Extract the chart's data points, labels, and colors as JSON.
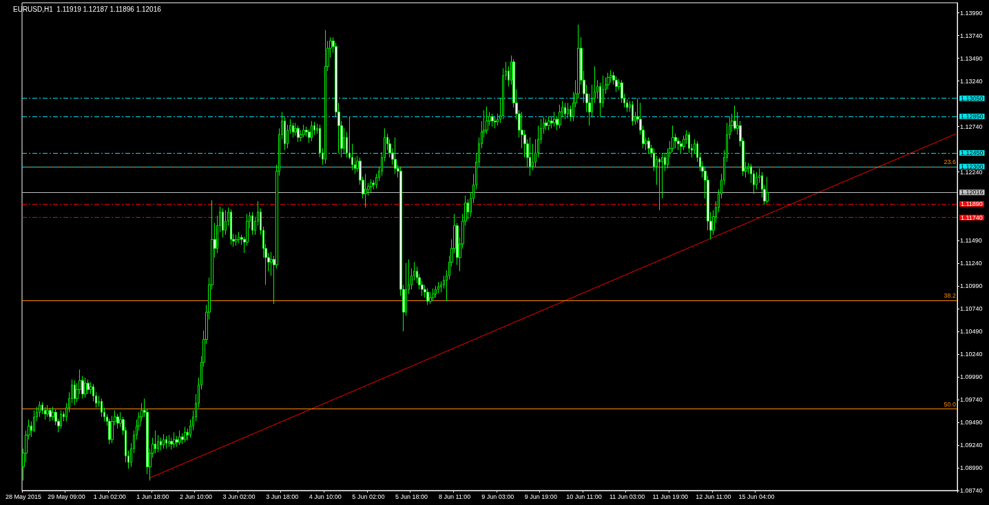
{
  "chart_data": {
    "type": "candlestick",
    "title": "EURUSD,H1  1.11919 1.12187 1.11896 1.12016",
    "color": "#00ff00",
    "categories": [
      "28 May 2015",
      null,
      null,
      null,
      null,
      null,
      null,
      null,
      null,
      null,
      null,
      null,
      null,
      null,
      null,
      null,
      "29 May 09:00",
      null,
      null,
      null,
      null,
      null,
      null,
      null,
      null,
      null,
      null,
      null,
      null,
      null,
      null,
      null,
      "1 Jun 02:00",
      null,
      null,
      null,
      null,
      null,
      null,
      null,
      null,
      null,
      null,
      null,
      null,
      null,
      null,
      null,
      "1 Jun 18:00",
      null,
      null,
      null,
      null,
      null,
      null,
      null,
      null,
      null,
      null,
      null,
      null,
      null,
      null,
      null,
      "2 Jun 10:00",
      null,
      null,
      null,
      null,
      null,
      null,
      null,
      null,
      null,
      null,
      null,
      null,
      null,
      null,
      null,
      "3 Jun 02:00",
      null,
      null,
      null,
      null,
      null,
      null,
      null,
      null,
      null,
      null,
      null,
      null,
      null,
      null,
      null,
      "3 Jun 18:00",
      null,
      null,
      null,
      null,
      null,
      null,
      null,
      null,
      null,
      null,
      null,
      null,
      null,
      null,
      null,
      "4 Jun 10:00",
      null,
      null,
      null,
      null,
      null,
      null,
      null,
      null,
      null,
      null,
      null,
      null,
      null,
      null,
      null,
      "5 Jun 02:00",
      null,
      null,
      null,
      null,
      null,
      null,
      null,
      null,
      null,
      null,
      null,
      null,
      null,
      null,
      null,
      "5 Jun 18:00",
      null,
      null,
      null,
      null,
      null,
      null,
      null,
      null,
      null,
      null,
      null,
      null,
      null,
      null,
      null,
      "8 Jun 11:00",
      null,
      null,
      null,
      null,
      null,
      null,
      null,
      null,
      null,
      null,
      null,
      null,
      null,
      null,
      null,
      "9 Jun 03:00",
      null,
      null,
      null,
      null,
      null,
      null,
      null,
      null,
      null,
      null,
      null,
      null,
      null,
      null,
      null,
      "9 Jun 19:00",
      null,
      null,
      null,
      null,
      null,
      null,
      null,
      null,
      null,
      null,
      null,
      null,
      null,
      null,
      null,
      "10 Jun 11:00",
      null,
      null,
      null,
      null,
      null,
      null,
      null,
      null,
      null,
      null,
      null,
      null,
      null,
      null,
      null,
      "11 Jun 03:00",
      null,
      null,
      null,
      null,
      null,
      null,
      null,
      null,
      null,
      null,
      null,
      null,
      null,
      null,
      null,
      "11 Jun 19:00",
      null,
      null,
      null,
      null,
      null,
      null,
      null,
      null,
      null,
      null,
      null,
      null,
      null,
      null,
      null,
      "12 Jun 11:00",
      null,
      null,
      null,
      null,
      null,
      null,
      null,
      null,
      null,
      null,
      null,
      null,
      null,
      null,
      null,
      "15 Jun 04:00",
      null,
      null,
      null,
      null,
      null,
      null,
      null,
      null,
      null,
      null,
      null,
      null,
      null,
      null,
      null,
      null,
      null,
      null,
      null,
      null,
      null,
      null,
      null,
      null,
      null,
      null,
      null,
      null,
      null,
      null,
      null,
      null,
      null,
      null,
      null,
      null,
      null,
      null,
      null,
      null,
      null,
      null,
      null,
      null,
      null,
      null,
      null,
      null,
      null,
      null,
      null,
      null,
      null,
      null,
      null,
      null,
      null,
      null,
      null,
      null,
      null,
      null,
      null,
      null,
      null,
      null,
      null,
      null,
      null,
      null,
      null,
      null,
      null,
      null
    ],
    "ohlc": [
      [
        1.09,
        1.092,
        1.0885,
        1.0915
      ],
      [
        1.0915,
        1.094,
        1.0905,
        1.0935
      ],
      [
        1.0935,
        1.0952,
        1.093,
        1.0945
      ],
      [
        1.0945,
        1.095,
        1.0933,
        1.094
      ],
      [
        1.094,
        1.0962,
        1.0938,
        1.0955
      ],
      [
        1.0955,
        1.0966,
        1.095,
        1.096
      ],
      [
        1.096,
        1.0972,
        1.0955,
        1.0968
      ],
      [
        1.0968,
        1.0971,
        1.0958,
        1.0962
      ],
      [
        1.0962,
        1.0966,
        1.0952,
        1.0958
      ],
      [
        1.0958,
        1.0968,
        1.0955,
        1.0962
      ],
      [
        1.0962,
        1.0965,
        1.095,
        1.0955
      ],
      [
        1.0955,
        1.0966,
        1.0951,
        1.096
      ],
      [
        1.096,
        1.0963,
        1.0946,
        1.095
      ],
      [
        1.095,
        1.0953,
        1.0938,
        1.0945
      ],
      [
        1.0945,
        1.0962,
        1.0942,
        1.0958
      ],
      [
        1.0958,
        1.0961,
        1.095,
        1.0955
      ],
      [
        1.0955,
        1.097,
        1.095,
        1.0965
      ],
      [
        1.0965,
        1.0982,
        1.096,
        1.0975
      ],
      [
        1.0975,
        1.0996,
        1.097,
        1.099
      ],
      [
        1.099,
        1.0995,
        1.0968,
        1.0975
      ],
      [
        1.0975,
        1.0992,
        1.0971,
        1.0985
      ],
      [
        1.0985,
        1.1007,
        1.098,
        1.0995
      ],
      [
        1.0995,
        1.1,
        1.0975,
        1.098
      ],
      [
        1.098,
        1.0998,
        1.0976,
        1.0992
      ],
      [
        1.0992,
        1.0996,
        1.098,
        1.0985
      ],
      [
        1.0985,
        1.0993,
        1.098,
        1.0988
      ],
      [
        1.0988,
        1.0991,
        1.0972,
        1.0978
      ],
      [
        1.0978,
        1.0982,
        1.0965,
        1.097
      ],
      [
        1.097,
        1.0978,
        1.0966,
        1.0972
      ],
      [
        1.0972,
        1.0975,
        1.0955,
        1.096
      ],
      [
        1.096,
        1.0965,
        1.095,
        1.0955
      ],
      [
        1.0955,
        1.0958,
        1.0945,
        1.095
      ],
      [
        1.095,
        1.0953,
        1.0925,
        1.093
      ],
      [
        1.093,
        1.0956,
        1.0926,
        1.095
      ],
      [
        1.095,
        1.0962,
        1.0946,
        1.0955
      ],
      [
        1.0955,
        1.0958,
        1.0942,
        1.0948
      ],
      [
        1.0948,
        1.096,
        1.0944,
        1.0952
      ],
      [
        1.0952,
        1.0955,
        1.0935,
        1.094
      ],
      [
        1.094,
        1.0944,
        1.0905,
        1.0912
      ],
      [
        1.0912,
        1.0918,
        1.0898,
        1.0905
      ],
      [
        1.0905,
        1.0926,
        1.09,
        1.092
      ],
      [
        1.092,
        1.094,
        1.0915,
        1.0935
      ],
      [
        1.0935,
        1.0952,
        1.093,
        1.0945
      ],
      [
        1.0945,
        1.096,
        1.094,
        1.0955
      ],
      [
        1.0955,
        1.097,
        1.095,
        1.0962
      ],
      [
        1.0962,
        1.0975,
        1.0955,
        1.096
      ],
      [
        1.096,
        1.0964,
        1.0892,
        1.09
      ],
      [
        1.09,
        1.092,
        1.0885,
        1.0915
      ],
      [
        1.0915,
        1.0932,
        1.091,
        1.0925
      ],
      [
        1.0925,
        1.094,
        1.0915,
        1.092
      ],
      [
        1.092,
        1.0935,
        1.0916,
        1.0928
      ],
      [
        1.0928,
        1.0932,
        1.0918,
        1.0924
      ],
      [
        1.0924,
        1.0936,
        1.092,
        1.093
      ],
      [
        1.093,
        1.0934,
        1.092,
        1.0926
      ],
      [
        1.0926,
        1.0935,
        1.0922,
        1.0928
      ],
      [
        1.0928,
        1.0932,
        1.0919,
        1.0925
      ],
      [
        1.0925,
        1.0938,
        1.0921,
        1.093
      ],
      [
        1.093,
        1.0934,
        1.0922,
        1.0927
      ],
      [
        1.0927,
        1.094,
        1.0924,
        1.0933
      ],
      [
        1.0933,
        1.0937,
        1.0925,
        1.093
      ],
      [
        1.093,
        1.0944,
        1.0927,
        1.0938
      ],
      [
        1.0938,
        1.0942,
        1.0929,
        1.0935
      ],
      [
        1.0935,
        1.0952,
        1.0932,
        1.0945
      ],
      [
        1.0945,
        1.0962,
        1.094,
        1.0955
      ],
      [
        1.0955,
        1.098,
        1.095,
        1.097
      ],
      [
        1.097,
        1.0998,
        1.0965,
        1.099
      ],
      [
        1.099,
        1.1022,
        1.0985,
        1.1015
      ],
      [
        1.1015,
        1.105,
        1.101,
        1.104
      ],
      [
        1.104,
        1.1078,
        1.1035,
        1.107
      ],
      [
        1.107,
        1.1108,
        1.1062,
        1.11
      ],
      [
        1.11,
        1.1193,
        1.1095,
        1.115
      ],
      [
        1.115,
        1.1168,
        1.113,
        1.114
      ],
      [
        1.114,
        1.1176,
        1.1135,
        1.1165
      ],
      [
        1.1165,
        1.1186,
        1.1158,
        1.118
      ],
      [
        1.118,
        1.1184,
        1.1152,
        1.116
      ],
      [
        1.116,
        1.1182,
        1.1155,
        1.117
      ],
      [
        1.117,
        1.1185,
        1.1165,
        1.118
      ],
      [
        1.118,
        1.1183,
        1.1144,
        1.115
      ],
      [
        1.115,
        1.1156,
        1.1142,
        1.1148
      ],
      [
        1.1148,
        1.1155,
        1.1143,
        1.115
      ],
      [
        1.115,
        1.1158,
        1.1146,
        1.1152
      ],
      [
        1.1152,
        1.1155,
        1.1144,
        1.115
      ],
      [
        1.115,
        1.1153,
        1.1135,
        1.1147
      ],
      [
        1.1147,
        1.1178,
        1.1143,
        1.117
      ],
      [
        1.117,
        1.118,
        1.1162,
        1.1176
      ],
      [
        1.1176,
        1.118,
        1.1155,
        1.116
      ],
      [
        1.116,
        1.1175,
        1.1155,
        1.117
      ],
      [
        1.117,
        1.1192,
        1.1165,
        1.118
      ],
      [
        1.118,
        1.1184,
        1.1155,
        1.116
      ],
      [
        1.116,
        1.1164,
        1.113,
        1.114
      ],
      [
        1.114,
        1.1145,
        1.11,
        1.113
      ],
      [
        1.113,
        1.1135,
        1.1115,
        1.1125
      ],
      [
        1.1125,
        1.1136,
        1.111,
        1.1128
      ],
      [
        1.1128,
        1.1132,
        1.1079,
        1.1122
      ],
      [
        1.1122,
        1.1232,
        1.1118,
        1.1225
      ],
      [
        1.1225,
        1.1272,
        1.122,
        1.1265
      ],
      [
        1.1265,
        1.129,
        1.126,
        1.128
      ],
      [
        1.128,
        1.1284,
        1.1248,
        1.1255
      ],
      [
        1.1255,
        1.1276,
        1.125,
        1.127
      ],
      [
        1.127,
        1.1282,
        1.1266,
        1.1275
      ],
      [
        1.1275,
        1.1278,
        1.1262,
        1.1268
      ],
      [
        1.1268,
        1.1278,
        1.1264,
        1.1272
      ],
      [
        1.1272,
        1.1275,
        1.1257,
        1.1262
      ],
      [
        1.1262,
        1.127,
        1.1258,
        1.1265
      ],
      [
        1.1265,
        1.1276,
        1.1262,
        1.127
      ],
      [
        1.127,
        1.1274,
        1.1263,
        1.1268
      ],
      [
        1.1268,
        1.1271,
        1.1256,
        1.1262
      ],
      [
        1.1262,
        1.128,
        1.1258,
        1.1275
      ],
      [
        1.1275,
        1.1279,
        1.1265,
        1.127
      ],
      [
        1.127,
        1.1277,
        1.1266,
        1.1272
      ],
      [
        1.1272,
        1.1276,
        1.124,
        1.1245
      ],
      [
        1.1245,
        1.125,
        1.1232,
        1.1238
      ],
      [
        1.1238,
        1.138,
        1.1233,
        1.134
      ],
      [
        1.134,
        1.1368,
        1.1335,
        1.136
      ],
      [
        1.136,
        1.1372,
        1.135,
        1.1368
      ],
      [
        1.1368,
        1.1372,
        1.1355,
        1.1362
      ],
      [
        1.1362,
        1.1366,
        1.1285,
        1.129
      ],
      [
        1.129,
        1.13,
        1.1245,
        1.1275
      ],
      [
        1.1275,
        1.128,
        1.124,
        1.125
      ],
      [
        1.125,
        1.1272,
        1.1245,
        1.1262
      ],
      [
        1.1262,
        1.1268,
        1.124,
        1.1245
      ],
      [
        1.1245,
        1.1285,
        1.1238,
        1.124
      ],
      [
        1.124,
        1.1255,
        1.1226,
        1.1232
      ],
      [
        1.1232,
        1.124,
        1.1222,
        1.1228
      ],
      [
        1.1228,
        1.1242,
        1.1224,
        1.1236
      ],
      [
        1.1236,
        1.124,
        1.121,
        1.1215
      ],
      [
        1.1215,
        1.1219,
        1.1195,
        1.12
      ],
      [
        1.12,
        1.1222,
        1.1185,
        1.1205
      ],
      [
        1.1205,
        1.1212,
        1.1198,
        1.1208
      ],
      [
        1.1208,
        1.1216,
        1.1202,
        1.1212
      ],
      [
        1.1212,
        1.1215,
        1.1205,
        1.121
      ],
      [
        1.121,
        1.1222,
        1.1206,
        1.1218
      ],
      [
        1.1218,
        1.123,
        1.1214,
        1.1225
      ],
      [
        1.1225,
        1.1246,
        1.122,
        1.124
      ],
      [
        1.124,
        1.1272,
        1.1236,
        1.1262
      ],
      [
        1.1262,
        1.1266,
        1.1248,
        1.1255
      ],
      [
        1.1255,
        1.126,
        1.124,
        1.1245
      ],
      [
        1.1245,
        1.125,
        1.1232,
        1.1238
      ],
      [
        1.1238,
        1.1262,
        1.1222,
        1.1228
      ],
      [
        1.1228,
        1.1232,
        1.1218,
        1.1225
      ],
      [
        1.1225,
        1.123,
        1.1088,
        1.1095
      ],
      [
        1.1095,
        1.11,
        1.1049,
        1.107
      ],
      [
        1.107,
        1.1124,
        1.1066,
        1.1095
      ],
      [
        1.1095,
        1.1128,
        1.109,
        1.11
      ],
      [
        1.11,
        1.1118,
        1.1095,
        1.111
      ],
      [
        1.111,
        1.1125,
        1.1105,
        1.1115
      ],
      [
        1.1115,
        1.112,
        1.1102,
        1.1108
      ],
      [
        1.1108,
        1.1112,
        1.1095,
        1.11
      ],
      [
        1.11,
        1.1104,
        1.1088,
        1.1095
      ],
      [
        1.1095,
        1.11,
        1.1086,
        1.1092
      ],
      [
        1.1092,
        1.1096,
        1.1078,
        1.1082
      ],
      [
        1.1082,
        1.1092,
        1.1079,
        1.1086
      ],
      [
        1.1086,
        1.1096,
        1.1082,
        1.109
      ],
      [
        1.109,
        1.1099,
        1.1086,
        1.1095
      ],
      [
        1.1095,
        1.1103,
        1.1091,
        1.1098
      ],
      [
        1.1098,
        1.1104,
        1.1092,
        1.11
      ],
      [
        1.11,
        1.111,
        1.1096,
        1.1105
      ],
      [
        1.1105,
        1.1116,
        1.1082,
        1.111
      ],
      [
        1.111,
        1.1132,
        1.1106,
        1.1125
      ],
      [
        1.1125,
        1.115,
        1.112,
        1.114
      ],
      [
        1.114,
        1.1178,
        1.1135,
        1.1165
      ],
      [
        1.1165,
        1.1168,
        1.1122,
        1.113
      ],
      [
        1.113,
        1.1152,
        1.1115,
        1.1145
      ],
      [
        1.1145,
        1.1178,
        1.114,
        1.117
      ],
      [
        1.117,
        1.1198,
        1.1165,
        1.119
      ],
      [
        1.119,
        1.1194,
        1.1172,
        1.118
      ],
      [
        1.118,
        1.1202,
        1.1175,
        1.1195
      ],
      [
        1.1195,
        1.1222,
        1.119,
        1.121
      ],
      [
        1.121,
        1.1245,
        1.1205,
        1.1235
      ],
      [
        1.1235,
        1.1262,
        1.123,
        1.1255
      ],
      [
        1.1255,
        1.128,
        1.125,
        1.1268
      ],
      [
        1.1268,
        1.1292,
        1.1262,
        1.127
      ],
      [
        1.127,
        1.1296,
        1.1266,
        1.128
      ],
      [
        1.128,
        1.129,
        1.1275,
        1.1285
      ],
      [
        1.1285,
        1.1288,
        1.1274,
        1.128
      ],
      [
        1.128,
        1.1284,
        1.1272,
        1.1279
      ],
      [
        1.1279,
        1.1288,
        1.1275,
        1.1282
      ],
      [
        1.1282,
        1.1305,
        1.1278,
        1.1286
      ],
      [
        1.1286,
        1.1338,
        1.1282,
        1.133
      ],
      [
        1.133,
        1.1345,
        1.1325,
        1.1335
      ],
      [
        1.1335,
        1.134,
        1.1318,
        1.1325
      ],
      [
        1.1325,
        1.1352,
        1.132,
        1.1345
      ],
      [
        1.1345,
        1.1348,
        1.1295,
        1.13
      ],
      [
        1.13,
        1.1315,
        1.1282,
        1.1288
      ],
      [
        1.1288,
        1.1292,
        1.1262,
        1.127
      ],
      [
        1.127,
        1.129,
        1.125,
        1.1265
      ],
      [
        1.1265,
        1.127,
        1.124,
        1.1255
      ],
      [
        1.1255,
        1.126,
        1.123,
        1.124
      ],
      [
        1.124,
        1.1262,
        1.122,
        1.123
      ],
      [
        1.123,
        1.1255,
        1.1226,
        1.1235
      ],
      [
        1.1235,
        1.126,
        1.123,
        1.1245
      ],
      [
        1.1245,
        1.1275,
        1.124,
        1.126
      ],
      [
        1.126,
        1.1282,
        1.1255,
        1.1272
      ],
      [
        1.1272,
        1.1284,
        1.1266,
        1.1278
      ],
      [
        1.1278,
        1.1282,
        1.127,
        1.1275
      ],
      [
        1.1275,
        1.1285,
        1.127,
        1.128
      ],
      [
        1.128,
        1.1284,
        1.1272,
        1.1278
      ],
      [
        1.1278,
        1.129,
        1.1274,
        1.1282
      ],
      [
        1.1282,
        1.1285,
        1.127,
        1.1276
      ],
      [
        1.1276,
        1.1298,
        1.1272,
        1.129
      ],
      [
        1.129,
        1.1302,
        1.1285,
        1.1295
      ],
      [
        1.1295,
        1.13,
        1.1282,
        1.1288
      ],
      [
        1.1288,
        1.13,
        1.1283,
        1.1293
      ],
      [
        1.1293,
        1.1297,
        1.128,
        1.1285
      ],
      [
        1.1285,
        1.1312,
        1.128,
        1.13
      ],
      [
        1.13,
        1.1325,
        1.1295,
        1.131
      ],
      [
        1.131,
        1.1386,
        1.1305,
        1.136
      ],
      [
        1.136,
        1.1372,
        1.132,
        1.1325
      ],
      [
        1.1325,
        1.1335,
        1.13,
        1.131
      ],
      [
        1.131,
        1.132,
        1.129,
        1.13
      ],
      [
        1.13,
        1.131,
        1.1275,
        1.129
      ],
      [
        1.129,
        1.132,
        1.1285,
        1.1305
      ],
      [
        1.1305,
        1.134,
        1.13,
        1.1312
      ],
      [
        1.1312,
        1.1325,
        1.1305,
        1.1318
      ],
      [
        1.1318,
        1.1322,
        1.1285,
        1.13
      ],
      [
        1.13,
        1.133,
        1.1295,
        1.1315
      ],
      [
        1.1315,
        1.1328,
        1.131,
        1.132
      ],
      [
        1.132,
        1.1333,
        1.1315,
        1.1328
      ],
      [
        1.1328,
        1.1336,
        1.1322,
        1.133
      ],
      [
        1.133,
        1.1334,
        1.132,
        1.1325
      ],
      [
        1.1325,
        1.1329,
        1.1312,
        1.1318
      ],
      [
        1.1318,
        1.1326,
        1.1314,
        1.1322
      ],
      [
        1.1322,
        1.1325,
        1.13,
        1.1305
      ],
      [
        1.1305,
        1.131,
        1.1295,
        1.13
      ],
      [
        1.13,
        1.1304,
        1.129,
        1.1295
      ],
      [
        1.1295,
        1.1302,
        1.129,
        1.1298
      ],
      [
        1.1298,
        1.1302,
        1.1275,
        1.128
      ],
      [
        1.128,
        1.129,
        1.1276,
        1.1285
      ],
      [
        1.1285,
        1.1305,
        1.1278,
        1.1282
      ],
      [
        1.1282,
        1.13,
        1.1265,
        1.127
      ],
      [
        1.127,
        1.1275,
        1.125,
        1.1255
      ],
      [
        1.1255,
        1.1262,
        1.1248,
        1.1258
      ],
      [
        1.1258,
        1.1262,
        1.1244,
        1.125
      ],
      [
        1.125,
        1.1254,
        1.124,
        1.1245
      ],
      [
        1.1245,
        1.125,
        1.1225,
        1.123
      ],
      [
        1.123,
        1.1242,
        1.121,
        1.1238
      ],
      [
        1.1238,
        1.124,
        1.1182,
        1.1235
      ],
      [
        1.1235,
        1.1245,
        1.1195,
        1.124
      ],
      [
        1.124,
        1.1244,
        1.1225,
        1.1232
      ],
      [
        1.1232,
        1.125,
        1.1228,
        1.1245
      ],
      [
        1.1245,
        1.1258,
        1.124,
        1.125
      ],
      [
        1.125,
        1.1275,
        1.1246,
        1.1262
      ],
      [
        1.1262,
        1.1266,
        1.125,
        1.1258
      ],
      [
        1.1258,
        1.1262,
        1.1248,
        1.1255
      ],
      [
        1.1255,
        1.1258,
        1.1245,
        1.1252
      ],
      [
        1.1252,
        1.1264,
        1.1248,
        1.126
      ],
      [
        1.126,
        1.127,
        1.1255,
        1.1265
      ],
      [
        1.1265,
        1.1268,
        1.1245,
        1.125
      ],
      [
        1.125,
        1.1255,
        1.124,
        1.1248
      ],
      [
        1.1248,
        1.126,
        1.1244,
        1.1255
      ],
      [
        1.1255,
        1.1258,
        1.1235,
        1.124
      ],
      [
        1.124,
        1.1245,
        1.1225,
        1.123
      ],
      [
        1.123,
        1.1236,
        1.1218,
        1.1225
      ],
      [
        1.1225,
        1.123,
        1.1195,
        1.1215
      ],
      [
        1.1215,
        1.122,
        1.116,
        1.117
      ],
      [
        1.117,
        1.118,
        1.115,
        1.116
      ],
      [
        1.116,
        1.1182,
        1.1155,
        1.1175
      ],
      [
        1.1175,
        1.1192,
        1.1168,
        1.1185
      ],
      [
        1.1185,
        1.1205,
        1.118,
        1.12
      ],
      [
        1.12,
        1.1222,
        1.1195,
        1.1215
      ],
      [
        1.1215,
        1.1248,
        1.121,
        1.124
      ],
      [
        1.124,
        1.1278,
        1.1235,
        1.1265
      ],
      [
        1.1265,
        1.1285,
        1.126,
        1.1275
      ],
      [
        1.1275,
        1.1288,
        1.1268,
        1.128
      ],
      [
        1.128,
        1.1297,
        1.127,
        1.1272
      ],
      [
        1.1272,
        1.129,
        1.1265,
        1.1275
      ],
      [
        1.1275,
        1.128,
        1.1252,
        1.1258
      ],
      [
        1.1258,
        1.1262,
        1.122,
        1.1225
      ],
      [
        1.1225,
        1.1235,
        1.1218,
        1.1228
      ],
      [
        1.1228,
        1.1234,
        1.1222,
        1.123
      ],
      [
        1.123,
        1.1233,
        1.1212,
        1.1222
      ],
      [
        1.1222,
        1.1226,
        1.12,
        1.121
      ],
      [
        1.121,
        1.1224,
        1.1205,
        1.1218
      ],
      [
        1.1218,
        1.1228,
        1.1212,
        1.122
      ],
      [
        1.122,
        1.1224,
        1.1196,
        1.1205
      ],
      [
        1.1205,
        1.121,
        1.1188,
        1.1192
      ],
      [
        1.11919,
        1.12187,
        1.11896,
        1.12016
      ],
      null,
      null,
      null,
      null,
      null,
      null,
      null,
      null,
      null,
      null,
      null,
      null,
      null,
      null,
      null,
      null,
      null,
      null,
      null,
      null,
      null,
      null,
      null,
      null,
      null,
      null,
      null,
      null,
      null,
      null,
      null,
      null,
      null,
      null,
      null,
      null,
      null,
      null,
      null,
      null,
      null,
      null,
      null,
      null,
      null,
      null,
      null,
      null,
      null,
      null,
      null,
      null,
      null,
      null,
      null,
      null,
      null,
      null,
      null,
      null,
      null,
      null,
      null,
      null,
      null,
      null,
      null,
      null,
      null,
      null
    ],
    "series": [
      {
        "type": "line",
        "color": "#ff0000",
        "values": [
          null,
          null,
          null,
          null,
          null,
          null,
          null,
          null,
          null,
          null,
          null,
          null,
          null,
          null,
          null,
          null,
          null,
          null,
          null,
          null,
          null,
          null,
          null,
          null,
          null,
          null,
          null,
          null,
          null,
          null,
          null,
          null,
          null,
          null,
          null,
          null,
          null,
          null,
          null,
          null,
          null,
          null,
          null,
          null,
          null,
          null,
          null,
          1.0888,
          null,
          null,
          null,
          null,
          null,
          null,
          null,
          null,
          null,
          null,
          null,
          null,
          null,
          null,
          null,
          null,
          null,
          null,
          null,
          null,
          null,
          null,
          null,
          null,
          null,
          null,
          null,
          null,
          null,
          null,
          null,
          null,
          null,
          null,
          null,
          null,
          null,
          null,
          null,
          null,
          null,
          null,
          null,
          null,
          null,
          null,
          null,
          null,
          null,
          null,
          null,
          null,
          null,
          null,
          null,
          null,
          null,
          null,
          null,
          null,
          null,
          null,
          null,
          null,
          null,
          null,
          null,
          null,
          null,
          null,
          null,
          null,
          null,
          null,
          null,
          null,
          null,
          null,
          null,
          null,
          null,
          null,
          null,
          null,
          null,
          null,
          null,
          null,
          null,
          null,
          null,
          null,
          null,
          null,
          null,
          null,
          null,
          null,
          null,
          null,
          null,
          null,
          null,
          null,
          null,
          null,
          null,
          null,
          null,
          null,
          null,
          null,
          null,
          null,
          null,
          null,
          null,
          null,
          null,
          null,
          null,
          null,
          null,
          null,
          null,
          null,
          null,
          null,
          null,
          null,
          null,
          null,
          null,
          null,
          null,
          null,
          null,
          null,
          null,
          null,
          null,
          null,
          null,
          null,
          null,
          null,
          null,
          null,
          null,
          null,
          null,
          null,
          null,
          null,
          null,
          null,
          null,
          null,
          null,
          null,
          null,
          null,
          null,
          null,
          null,
          null,
          null,
          null,
          null,
          null,
          null,
          null,
          null,
          null,
          null,
          null,
          null,
          null,
          null,
          null,
          null,
          null,
          null,
          null,
          null,
          null,
          null,
          null,
          null,
          null,
          null,
          null,
          null,
          null,
          null,
          null,
          null,
          null,
          null,
          null,
          null,
          null,
          null,
          null,
          null,
          null,
          null,
          null,
          null,
          null,
          null,
          null,
          null,
          null,
          null,
          null,
          null,
          null,
          null,
          null,
          null,
          null,
          null,
          null,
          null,
          null,
          null,
          null,
          null,
          null,
          null,
          null,
          null,
          null,
          null,
          null,
          null,
          null,
          null,
          null,
          null,
          null,
          null,
          null,
          null,
          null,
          null,
          null,
          null,
          null,
          null,
          null,
          null,
          null,
          null,
          null,
          null,
          null,
          null,
          null,
          null,
          null,
          null,
          null,
          null,
          null,
          null,
          null,
          null,
          null,
          null,
          null,
          null,
          null,
          null,
          null,
          null,
          null,
          null,
          null,
          null,
          null,
          null,
          null,
          null,
          null,
          null,
          null,
          null,
          null,
          null,
          null,
          null,
          null,
          null,
          null,
          null,
          null,
          1.1266
        ]
      }
    ],
    "ylim": [
      1.0874,
      1.141
    ],
    "yticks": [
      {
        "value": 1.1399,
        "label": "1.13990"
      },
      {
        "value": 1.1374,
        "label": "1.13740"
      },
      {
        "value": 1.1349,
        "label": "1.13490"
      },
      {
        "value": 1.1324,
        "label": "1.13240"
      },
      {
        "value": 1.1274,
        "label": "1.12740"
      },
      {
        "value": 1.1224,
        "label": "1.12240"
      },
      {
        "value": 1.1149,
        "label": "1.11490"
      },
      {
        "value": 1.1124,
        "label": "1.11240"
      },
      {
        "value": 1.1099,
        "label": "1.10990"
      },
      {
        "value": 1.1074,
        "label": "1.10740"
      },
      {
        "value": 1.1049,
        "label": "1.10490"
      },
      {
        "value": 1.1024,
        "label": "1.10240"
      },
      {
        "value": 1.0999,
        "label": "1.09990"
      },
      {
        "value": 1.0974,
        "label": "1.09740"
      },
      {
        "value": 1.0949,
        "label": "1.09490"
      },
      {
        "value": 1.0924,
        "label": "1.09240"
      },
      {
        "value": 1.0899,
        "label": "1.08990"
      },
      {
        "value": 1.0874,
        "label": "1.08740"
      }
    ],
    "ref_lines": [
      {
        "axis": "y",
        "value": 1.1305,
        "label": "1.13050",
        "color": "#00e5ee",
        "line_style": "dashed"
      },
      {
        "axis": "y",
        "value": 1.1285,
        "label": "1.12850",
        "color": "#00e5ee",
        "line_style": "dashed"
      },
      {
        "axis": "y",
        "value": 1.1245,
        "label": "1.12450",
        "color": "#00e5ee",
        "line_style": "dashed"
      },
      {
        "axis": "y",
        "value": 1.123,
        "label": "1.12300",
        "color": "#00e5ee",
        "line_style": "dashed"
      },
      {
        "axis": "y",
        "value": 1.12016,
        "label": "1.12016",
        "color": "#c0c0c0",
        "line_style": "solid"
      },
      {
        "axis": "y",
        "value": 1.1189,
        "label": "1.11890",
        "color": "#ff0000",
        "line_style": "dashed"
      },
      {
        "axis": "y",
        "value": 1.1174,
        "label": "1.11740",
        "color": "#ff0000",
        "line_style": "dashed"
      },
      {
        "axis": "y",
        "value": 1.123,
        "color": "#ff8c00",
        "line_style": "solid"
      },
      {
        "axis": "y",
        "value": 1.1083,
        "color": "#ff8c00",
        "line_style": "solid"
      },
      {
        "axis": "y",
        "value": 1.0964,
        "color": "#ff8c00",
        "line_style": "solid"
      }
    ],
    "annotations": [
      "23.6",
      "38.2",
      "50.0"
    ],
    "grid": false
  }
}
